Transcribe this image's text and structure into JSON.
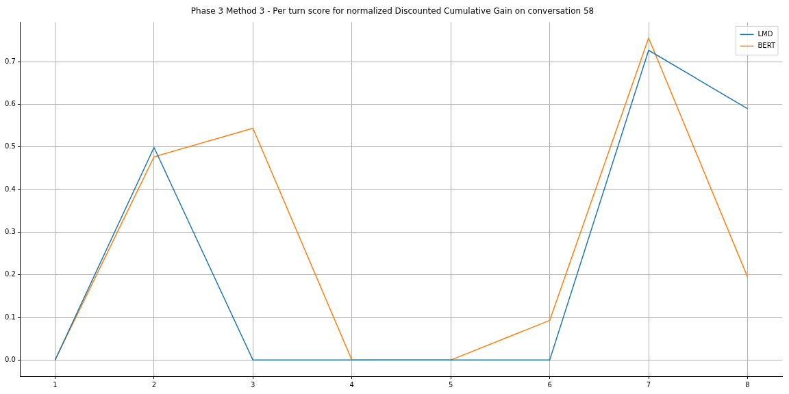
{
  "chart_data": {
    "type": "line",
    "title": "Phase 3 Method 3 - Per turn score for normalized Discounted Cumulative Gain on conversation 58",
    "x": [
      1,
      2,
      3,
      4,
      5,
      6,
      7,
      8
    ],
    "series": [
      {
        "name": "LMD",
        "color": "#1f77b4",
        "values": [
          0,
          0.499,
          0,
          0,
          0,
          0,
          0.727,
          0.59
        ]
      },
      {
        "name": "BERT",
        "color": "#ff7f0e",
        "values": [
          0,
          0.477,
          0.544,
          0,
          0,
          0.093,
          0.756,
          0.195
        ]
      }
    ],
    "xlim": [
      0.65,
      8.35
    ],
    "xticks": [
      1,
      2,
      3,
      4,
      5,
      6,
      7,
      8
    ],
    "ylim": [
      -0.038,
      0.793
    ],
    "yticks": [
      {
        "value": 0,
        "label": "0.0"
      },
      {
        "value": 0.1,
        "label": "0.1"
      },
      {
        "value": 0.2,
        "label": "0.2"
      },
      {
        "value": 0.3,
        "label": "0.3"
      },
      {
        "value": 0.4,
        "label": "0.4"
      },
      {
        "value": 0.5,
        "label": "0.5"
      },
      {
        "value": 0.6,
        "label": "0.6"
      },
      {
        "value": 0.7,
        "label": "0.7"
      }
    ],
    "grid": true,
    "legend": "top right",
    "marker": "none",
    "line_style": "solid"
  }
}
